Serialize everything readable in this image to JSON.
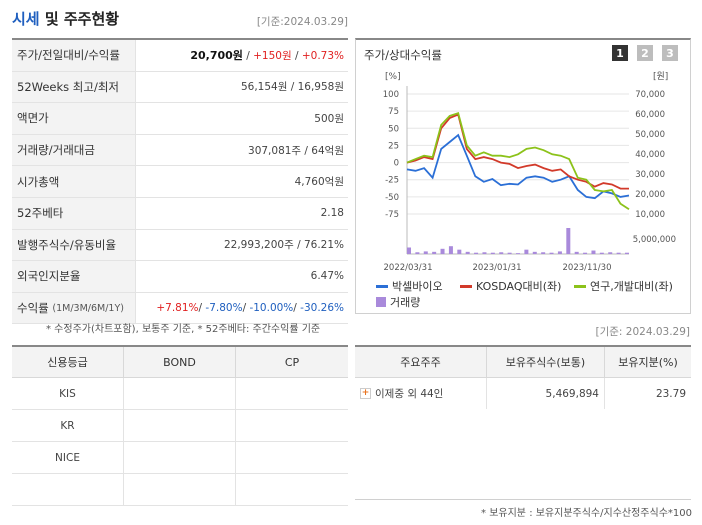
{
  "header": {
    "title_highlight": "시세",
    "title_rest": " 및 주주현황",
    "as_of": "[기준:2024.03.29]"
  },
  "quote_table": [
    {
      "label": "주가/전일대비/수익률",
      "price": "20,700원",
      "sep1": " / ",
      "change": "+150원",
      "sep2": " / ",
      "pct": "+0.73%"
    },
    {
      "label": "52Weeks 최고/최저",
      "value": "56,154원 / 16,958원"
    },
    {
      "label": "액면가",
      "value": "500원"
    },
    {
      "label": "거래량/거래대금",
      "value": "307,081주 / 64억원"
    },
    {
      "label": "시가총액",
      "value": "4,760억원"
    },
    {
      "label": "52주베타",
      "value": "2.18"
    },
    {
      "label": "발행주식수/유동비율",
      "value": "22,993,200주 / 76.21%"
    },
    {
      "label": "외국인지분율",
      "value": "6.47%"
    },
    {
      "label": "수익률",
      "label_small": "(1M/3M/6M/1Y)",
      "r1": "+7.81%",
      "r2": "-7.80%",
      "r3": "-10.00%",
      "r4": "-30.26%"
    }
  ],
  "note_left": "* 수정주가(차트포함), 보통주 기준, * 52주베타: 주간수익률 기준",
  "chart_panel": {
    "title": "주가/상대수익률",
    "buttons": [
      "1",
      "2",
      "3"
    ],
    "left_unit": "[%]",
    "right_unit": "[원]"
  },
  "chart_data": {
    "type": "line",
    "x_tick_labels": [
      "2022/03/31",
      "2023/01/31",
      "2023/11/30"
    ],
    "y_left_ticks": [
      100,
      75,
      50,
      25,
      0,
      -25,
      -50,
      -75
    ],
    "y_right_ticks": [
      "70,000",
      "60,000",
      "50,000",
      "40,000",
      "30,000",
      "20,000",
      "10,000"
    ],
    "volume_tick": "5,000,000",
    "ylim_left": [
      -75,
      100
    ],
    "ylim_right": [
      10000,
      70000
    ],
    "colors": {
      "stock": "#2b6fd6",
      "kosdaq": "#d23a2a",
      "industry": "#8cc21a",
      "volume": "#a98adb"
    },
    "series": [
      {
        "name": "박셀바이오",
        "values": [
          -10,
          -12,
          -8,
          -22,
          20,
          30,
          40,
          10,
          -20,
          -28,
          -24,
          -33,
          -31,
          -32,
          -22,
          -20,
          -22,
          -28,
          -25,
          -20,
          -40,
          -50,
          -52,
          -42,
          -45,
          -50,
          -48
        ]
      },
      {
        "name": "KOSDAQ대비(좌)",
        "values": [
          0,
          3,
          8,
          5,
          50,
          65,
          70,
          20,
          5,
          8,
          5,
          0,
          -2,
          -8,
          -5,
          -3,
          -8,
          -12,
          -10,
          -20,
          -25,
          -28,
          -35,
          -30,
          -32,
          -38,
          -38
        ]
      },
      {
        "name": "연구,개발대비(좌)",
        "values": [
          0,
          5,
          10,
          8,
          55,
          68,
          72,
          25,
          10,
          15,
          10,
          10,
          8,
          12,
          20,
          22,
          18,
          12,
          10,
          5,
          -22,
          -25,
          -40,
          -42,
          -40,
          -60,
          -68
        ]
      }
    ],
    "volume_series": {
      "name": "거래량",
      "values": [
        1.5,
        0.4,
        0.6,
        0.5,
        1.2,
        1.8,
        1.0,
        0.5,
        0.3,
        0.4,
        0.3,
        0.4,
        0.3,
        0.2,
        1.0,
        0.5,
        0.4,
        0.3,
        0.6,
        6.0,
        0.5,
        0.3,
        0.8,
        0.3,
        0.4,
        0.3,
        0.3
      ]
    }
  },
  "as_of_mid": "[기준: 2024.03.29]",
  "credit_table": {
    "headers": [
      "신용등급",
      "BOND",
      "CP"
    ],
    "rows": [
      [
        "KIS",
        "",
        ""
      ],
      [
        "KR",
        "",
        ""
      ],
      [
        "NICE",
        "",
        ""
      ],
      [
        "",
        "",
        ""
      ]
    ]
  },
  "holders_table": {
    "headers": [
      "주요주주",
      "보유주식수(보통)",
      "보유지분(%)"
    ],
    "rows": [
      {
        "name": "이제중 외 44인",
        "shares": "5,469,894",
        "pct": "23.79"
      }
    ],
    "plus_icon_color": "#e8731f"
  },
  "note_right": "* 보유지분 : 보유지분주식수/지수산정주식수*100"
}
